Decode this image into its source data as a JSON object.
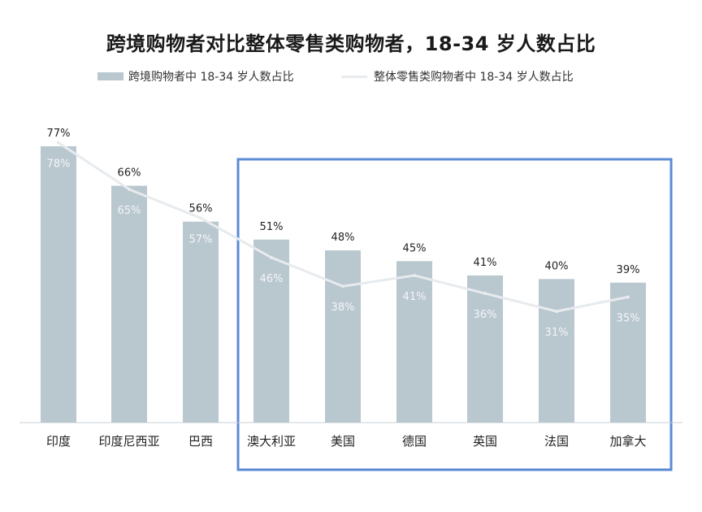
{
  "title": "跨境购物者对比整体零售类购物者，18-34 岁人数占比",
  "colors": {
    "bar": "#b9c7cf",
    "line": "#e7ebee",
    "highlight_box": "#5b8ad6",
    "axis": "#c9d1d6"
  },
  "chart_data": {
    "type": "bar",
    "title": "跨境购物者对比整体零售类购物者，18-34 岁人数占比",
    "xlabel": "",
    "ylabel": "",
    "ylim": [
      0,
      80
    ],
    "categories": [
      "印度",
      "印度尼西亚",
      "巴西",
      "澳大利亚",
      "美国",
      "德国",
      "英国",
      "法国",
      "加拿大"
    ],
    "series": [
      {
        "name": "跨境购物者中 18-34 岁人数占比",
        "type": "bar",
        "values": [
          77,
          66,
          56,
          51,
          48,
          45,
          41,
          40,
          39
        ],
        "labels": [
          "77%",
          "66%",
          "56%",
          "51%",
          "48%",
          "45%",
          "41%",
          "40%",
          "39%"
        ]
      },
      {
        "name": "整体零售类购物者中 18-34 岁人数占比",
        "type": "line",
        "values": [
          78,
          65,
          57,
          46,
          38,
          41,
          36,
          31,
          35
        ],
        "labels": [
          "78%",
          "65%",
          "57%",
          "46%",
          "38%",
          "41%",
          "36%",
          "31%",
          "35%"
        ]
      }
    ],
    "highlight": {
      "from": "澳大利亚",
      "to": "加拿大"
    },
    "legend_position": "top",
    "grid": false
  }
}
